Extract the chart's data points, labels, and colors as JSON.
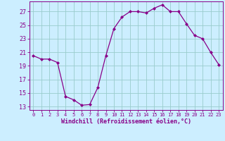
{
  "x": [
    0,
    1,
    2,
    3,
    4,
    5,
    6,
    7,
    8,
    9,
    10,
    11,
    12,
    13,
    14,
    15,
    16,
    17,
    18,
    19,
    20,
    21,
    22,
    23
  ],
  "y": [
    20.5,
    20.0,
    20.0,
    19.5,
    14.5,
    14.0,
    13.2,
    13.3,
    15.8,
    20.5,
    24.5,
    26.2,
    27.0,
    27.0,
    26.8,
    27.5,
    28.0,
    27.0,
    27.0,
    25.2,
    23.5,
    23.0,
    21.0,
    19.2
  ],
  "line_color": "#880088",
  "marker": "D",
  "marker_size": 2.0,
  "bg_color": "#cceeff",
  "grid_color": "#99cccc",
  "xlabel": "Windchill (Refroidissement éolien,°C)",
  "xlabel_color": "#880088",
  "ylabel_ticks": [
    13,
    15,
    17,
    19,
    21,
    23,
    25,
    27
  ],
  "xtick_labels": [
    "0",
    "1",
    "2",
    "3",
    "4",
    "5",
    "6",
    "7",
    "8",
    "9",
    "10",
    "11",
    "12",
    "13",
    "14",
    "15",
    "16",
    "17",
    "18",
    "19",
    "20",
    "21",
    "22",
    "23"
  ],
  "ylim": [
    12.5,
    28.5
  ],
  "xlim": [
    -0.5,
    23.5
  ],
  "tick_color": "#880088",
  "spine_color": "#880088"
}
